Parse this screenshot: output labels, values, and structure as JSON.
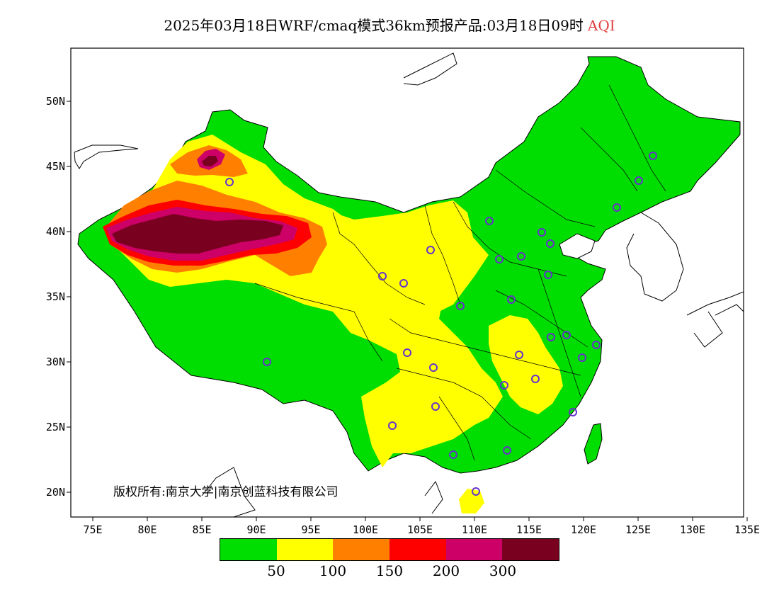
{
  "title": {
    "main": "2025年03月18日WRF/cmaq模式36km预报产品:03月18日09时",
    "variable": "AQI",
    "variable_color": "#e03c3c"
  },
  "axes": {
    "lat_labels": [
      "50N",
      "45N",
      "40N",
      "35N",
      "30N",
      "25N",
      "20N"
    ],
    "lon_labels": [
      "75E",
      "80E",
      "85E",
      "90E",
      "95E",
      "100E",
      "105E",
      "110E",
      "115E",
      "120E",
      "125E",
      "130E",
      "135E"
    ]
  },
  "copyright": "版权所有:南京大学|南京创蓝科技有限公司",
  "legend": {
    "colors": [
      "#00dd00",
      "#ffff00",
      "#ff8000",
      "#ff0000",
      "#cc0066",
      "#7a0020"
    ],
    "labels": [
      "50",
      "100",
      "150",
      "200",
      "300"
    ]
  }
}
